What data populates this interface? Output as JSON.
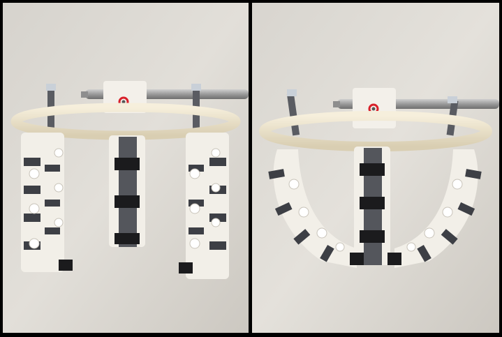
{
  "figure": {
    "panels": [
      {
        "id": "left",
        "state": "open",
        "description_hidden": true
      },
      {
        "id": "right",
        "state": "closed",
        "description_hidden": true
      }
    ]
  },
  "colors": {
    "frame": "#000000",
    "wall": "#dedbd4",
    "ring": "#efe6cf",
    "link": "#f4f1ea",
    "pad_dark": "#3d3f45",
    "pad_black": "#1b1b1d",
    "rod": "#a7a7a7",
    "screw_red": "#d8202a"
  }
}
